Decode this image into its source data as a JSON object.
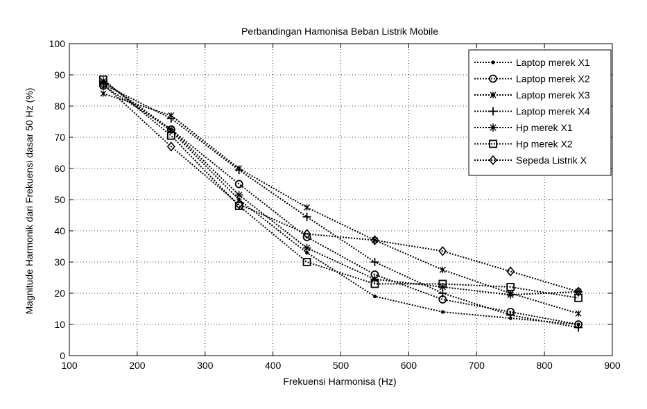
{
  "chart_data": {
    "type": "line",
    "title": "Perbandingan Hamonisa Beban Listrik Mobile",
    "xlabel": "Frekuensi Harmonisa (Hz)",
    "ylabel": "Magnitude Harmonik dari Frekuensi dasar 50 Hz (%)",
    "xlim": [
      100,
      900
    ],
    "ylim": [
      0,
      100
    ],
    "xticks": [
      100,
      200,
      300,
      400,
      500,
      600,
      700,
      800,
      900
    ],
    "yticks": [
      0,
      10,
      20,
      30,
      40,
      50,
      60,
      70,
      80,
      90,
      100
    ],
    "grid": true,
    "legend_position": "top-right",
    "line_style": "dotted",
    "line_color": "#000000",
    "x": [
      150,
      250,
      350,
      450,
      550,
      650,
      750,
      850
    ],
    "series": [
      {
        "name": "Laptop merek X1",
        "marker": "dot",
        "values": [
          88,
          72,
          50,
          33,
          19,
          14,
          12,
          10
        ]
      },
      {
        "name": "Laptop merek X2",
        "marker": "circle",
        "values": [
          86.5,
          72.5,
          55,
          38,
          26,
          18,
          14,
          10
        ]
      },
      {
        "name": "Laptop merek X3",
        "marker": "asterisk",
        "values": [
          84,
          77,
          60,
          47.5,
          37,
          27.5,
          20,
          13.5
        ]
      },
      {
        "name": "Laptop merek X4",
        "marker": "plus",
        "values": [
          87,
          76,
          59.5,
          44.5,
          30,
          20,
          13,
          9
        ]
      },
      {
        "name": "Hp merek X1",
        "marker": "star",
        "values": [
          88,
          72.5,
          51.5,
          34.5,
          24.5,
          22,
          19.5,
          20.5
        ]
      },
      {
        "name": "Hp merek X2",
        "marker": "square",
        "values": [
          88.5,
          70.5,
          48,
          30,
          23,
          23,
          22,
          18.5
        ]
      },
      {
        "name": "Sepeda Listrik X",
        "marker": "diamond",
        "values": [
          87,
          67,
          48.5,
          39,
          37,
          33.5,
          27,
          20.5
        ]
      }
    ]
  }
}
